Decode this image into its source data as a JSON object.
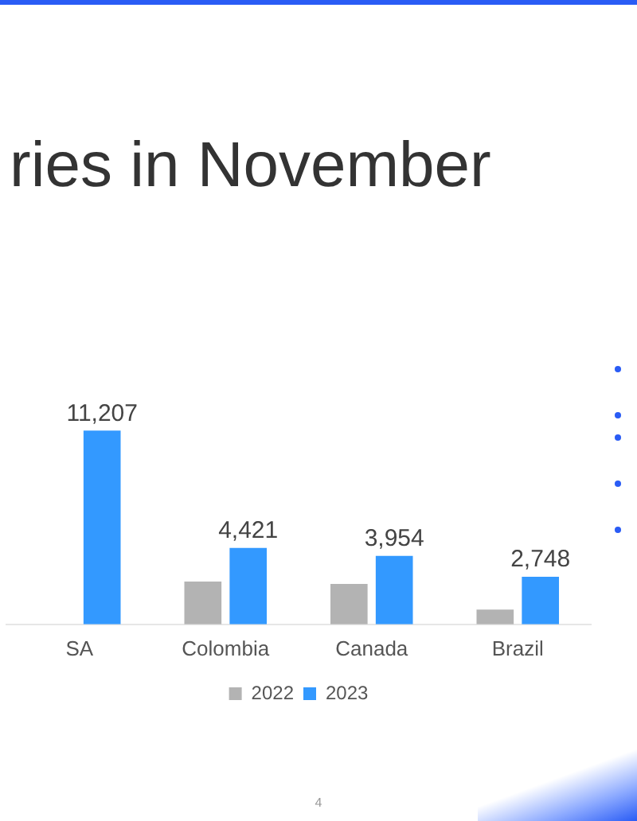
{
  "chart_data": {
    "type": "bar",
    "title": "ries in November",
    "categories": [
      "SA",
      "Colombia",
      "Canada",
      "Brazil"
    ],
    "series": [
      {
        "name": "2022",
        "color": "#b3b3b3",
        "values": [
          null,
          2480,
          2340,
          850
        ]
      },
      {
        "name": "2023",
        "color": "#3399ff",
        "values": [
          11207,
          4421,
          3954,
          2748
        ],
        "value_labels": [
          "11,207",
          "4,421",
          "3,954",
          "2,748"
        ]
      }
    ],
    "legend": "bottom",
    "grid": false,
    "annotations": [
      "4"
    ]
  }
}
